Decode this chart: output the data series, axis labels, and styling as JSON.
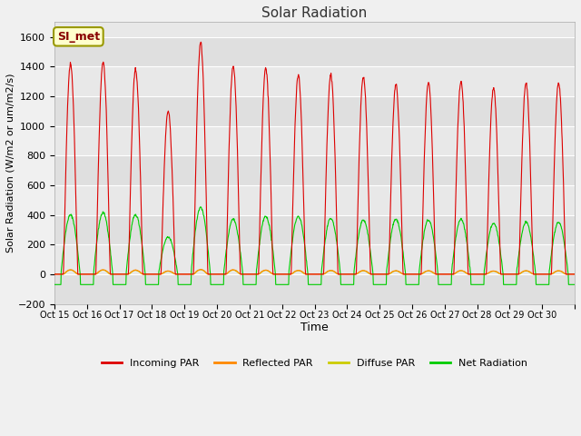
{
  "title": "Solar Radiation",
  "xlabel": "Time",
  "ylabel": "Solar Radiation (W/m2 or um/m2/s)",
  "ylim": [
    -200,
    1700
  ],
  "yticks": [
    -200,
    0,
    200,
    400,
    600,
    800,
    1000,
    1200,
    1400,
    1600
  ],
  "legend_label": "SI_met",
  "legend_entries": [
    "Incoming PAR",
    "Reflected PAR",
    "Diffuse PAR",
    "Net Radiation"
  ],
  "legend_colors": [
    "#dd0000",
    "#ff8800",
    "#cccc00",
    "#00cc00"
  ],
  "fig_facecolor": "#f0f0f0",
  "plot_facecolor": "#e8e8e8",
  "num_days": 16,
  "x_tick_labels": [
    "Oct 15",
    "Oct 16",
    "Oct 17",
    "Oct 18",
    "Oct 19",
    "Oct 20",
    "Oct 21",
    "Oct 22",
    "Oct 23",
    "Oct 24",
    "Oct 25",
    "Oct 26",
    "Oct 27",
    "Oct 28",
    "Oct 29",
    "Oct 30"
  ],
  "incoming_peaks": [
    1420,
    1430,
    1380,
    1100,
    1560,
    1400,
    1390,
    1340,
    1340,
    1330,
    1280,
    1290,
    1300,
    1255,
    1285,
    1285
  ],
  "net_peaks": [
    400,
    415,
    400,
    250,
    450,
    370,
    390,
    390,
    375,
    365,
    370,
    365,
    370,
    345,
    350,
    350
  ],
  "reflected_peaks": [
    30,
    30,
    28,
    22,
    32,
    30,
    28,
    26,
    26,
    25,
    24,
    24,
    25,
    22,
    24,
    24
  ],
  "diffuse_peaks": [
    28,
    28,
    26,
    20,
    30,
    28,
    26,
    24,
    24,
    23,
    22,
    22,
    23,
    20,
    22,
    22
  ]
}
